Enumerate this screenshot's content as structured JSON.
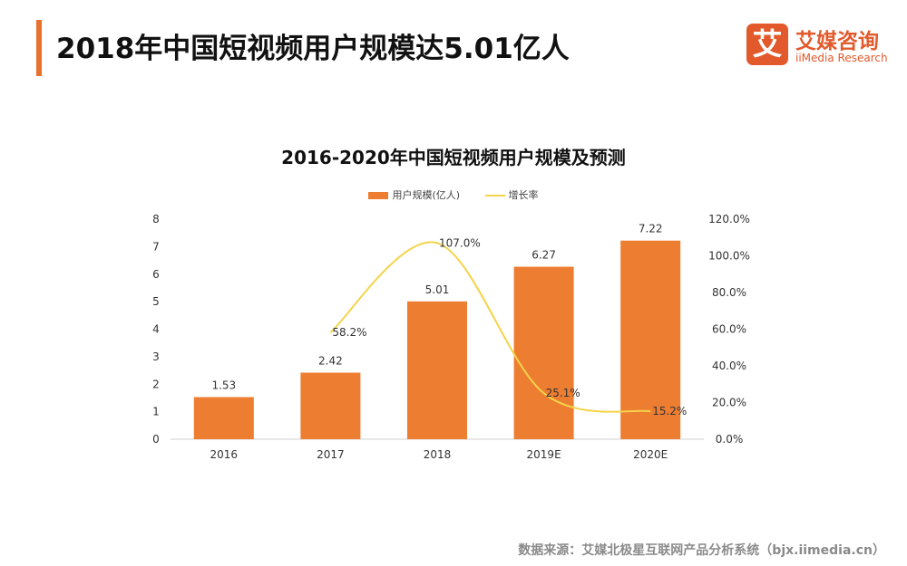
{
  "header": {
    "title": "2018年中国短视频用户规模达5.01亿人"
  },
  "logo": {
    "mark": "艾",
    "name_cn": "艾媒咨询",
    "name_en": "iiMedia Research",
    "brand_color": "#e25a2c"
  },
  "chart_data": {
    "type": "bar",
    "title": "2016-2020年中国短视频用户规模及预测",
    "categories": [
      "2016",
      "2017",
      "2018",
      "2019E",
      "2020E"
    ],
    "series": [
      {
        "name": "用户规模(亿人)",
        "type": "bar",
        "axis": "left",
        "values": [
          1.53,
          2.42,
          5.01,
          6.27,
          7.22
        ],
        "labels": [
          "1.53",
          "2.42",
          "5.01",
          "6.27",
          "7.22"
        ],
        "color": "#ed7d31"
      },
      {
        "name": "增长率",
        "type": "line",
        "axis": "right",
        "values": [
          null,
          58.2,
          107.0,
          25.1,
          15.2
        ],
        "labels": [
          "",
          "58.2%",
          "107.0%",
          "25.1%",
          "15.2%"
        ],
        "color": "#f3d44a"
      }
    ],
    "y_left": {
      "min": 0,
      "max": 8,
      "ticks": [
        "0",
        "1",
        "2",
        "3",
        "4",
        "5",
        "6",
        "7",
        "8"
      ]
    },
    "y_right": {
      "min": 0,
      "max": 120,
      "ticks": [
        "0.0%",
        "20.0%",
        "40.0%",
        "60.0%",
        "80.0%",
        "100.0%",
        "120.0%"
      ]
    },
    "legend_position": "top",
    "grid": false
  },
  "footer": {
    "source": "数据来源：艾媒北极星互联网产品分析系统（bjx.iimedia.cn）"
  }
}
